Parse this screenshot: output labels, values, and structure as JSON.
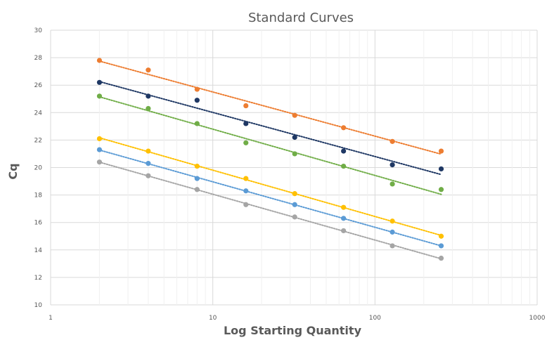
{
  "chart_data": {
    "type": "scatter",
    "title": "Standard Curves",
    "xlabel": "Log Starting Quantity",
    "ylabel": "Cq",
    "x_scale": "log",
    "xlim": [
      1,
      1000
    ],
    "ylim": [
      10,
      30
    ],
    "x_ticks": [
      "1",
      "10",
      "100",
      "1000"
    ],
    "y_ticks": [
      "10",
      "12",
      "14",
      "16",
      "18",
      "20",
      "22",
      "24",
      "26",
      "28",
      "30"
    ],
    "grid": true,
    "trendlines": "linear, dotted",
    "x": [
      2,
      4,
      8,
      16,
      32,
      64,
      128,
      256
    ],
    "series": [
      {
        "color": "#ed7d31",
        "values": [
          27.8,
          27.1,
          25.7,
          24.5,
          23.8,
          22.9,
          21.9,
          21.2
        ]
      },
      {
        "color": "#1f3864",
        "values": [
          26.2,
          25.2,
          24.9,
          23.2,
          22.2,
          21.2,
          20.2,
          19.9
        ]
      },
      {
        "color": "#70ad47",
        "values": [
          25.2,
          24.3,
          23.2,
          21.8,
          21.0,
          20.1,
          18.8,
          18.4
        ]
      },
      {
        "color": "#ffc000",
        "values": [
          22.1,
          21.2,
          20.1,
          19.2,
          18.1,
          17.1,
          16.1,
          15.0
        ]
      },
      {
        "color": "#5b9bd5",
        "values": [
          21.3,
          20.3,
          19.2,
          18.3,
          17.3,
          16.3,
          15.3,
          14.3
        ]
      },
      {
        "color": "#a5a5a5",
        "values": [
          20.4,
          19.4,
          18.4,
          17.3,
          16.4,
          15.4,
          14.3,
          13.4
        ]
      }
    ]
  }
}
